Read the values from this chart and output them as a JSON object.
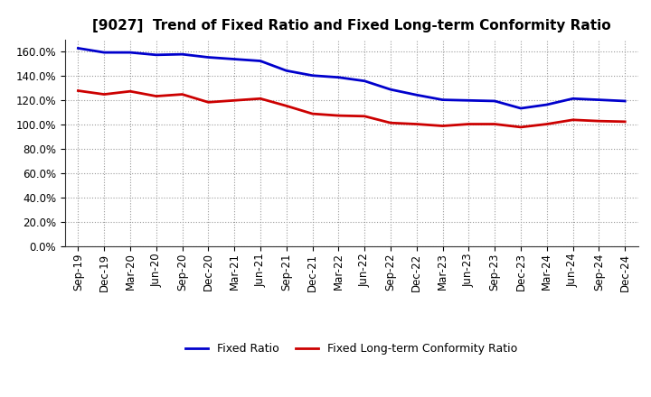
{
  "title": "[9027]  Trend of Fixed Ratio and Fixed Long-term Conformity Ratio",
  "x_labels": [
    "Sep-19",
    "Dec-19",
    "Mar-20",
    "Jun-20",
    "Sep-20",
    "Dec-20",
    "Mar-21",
    "Jun-21",
    "Sep-21",
    "Dec-21",
    "Mar-22",
    "Jun-22",
    "Sep-22",
    "Dec-22",
    "Mar-23",
    "Jun-23",
    "Sep-23",
    "Dec-23",
    "Mar-24",
    "Jun-24",
    "Sep-24",
    "Dec-24"
  ],
  "fixed_ratio": [
    163.0,
    159.5,
    159.5,
    157.5,
    158.0,
    155.5,
    154.0,
    152.5,
    144.5,
    140.5,
    139.0,
    136.0,
    129.0,
    124.5,
    120.5,
    120.0,
    119.5,
    113.5,
    116.5,
    121.5,
    120.5,
    119.5
  ],
  "fixed_lt_ratio": [
    128.0,
    125.0,
    127.5,
    123.5,
    125.0,
    118.5,
    120.0,
    121.5,
    115.5,
    109.0,
    107.5,
    107.0,
    101.5,
    100.5,
    99.0,
    100.5,
    100.5,
    98.0,
    100.5,
    104.0,
    103.0,
    102.5
  ],
  "fixed_ratio_color": "#0000cc",
  "fixed_lt_ratio_color": "#cc0000",
  "background_color": "#ffffff",
  "grid_color": "#999999",
  "ylim": [
    0,
    170
  ],
  "yticks": [
    0,
    20,
    40,
    60,
    80,
    100,
    120,
    140,
    160
  ],
  "legend_fixed_ratio": "Fixed Ratio",
  "legend_fixed_lt": "Fixed Long-term Conformity Ratio",
  "title_fontsize": 11,
  "tick_fontsize": 8.5,
  "legend_fontsize": 9
}
